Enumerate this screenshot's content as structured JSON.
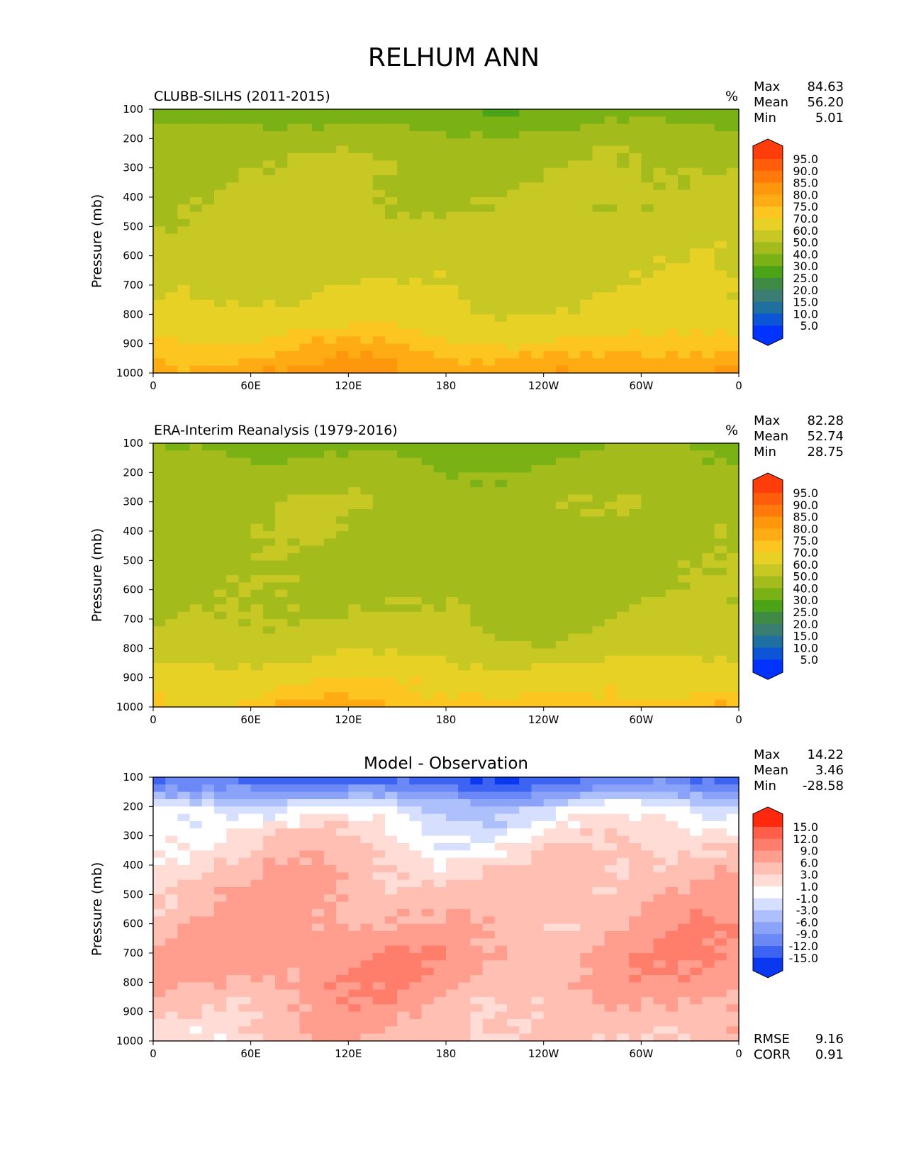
{
  "figure": {
    "title": "RELHUM ANN"
  },
  "colorscales": {
    "relhum": {
      "levels": [
        "95.0",
        "90.0",
        "85.0",
        "80.0",
        "75.0",
        "70.0",
        "60.0",
        "50.0",
        "40.0",
        "30.0",
        "25.0",
        "20.0",
        "15.0",
        "10.0",
        "5.0"
      ],
      "colors": [
        "#ff3d0b",
        "#ff5d0a",
        "#ff7a0a",
        "#ff970c",
        "#ffab14",
        "#fcc51f",
        "#e8d125",
        "#c8c824",
        "#a3bc1c",
        "#7ab115",
        "#4ba418",
        "#3f8a45",
        "#3a7e73",
        "#1f6fa1",
        "#0b55d6",
        "#0033ff"
      ]
    },
    "diff": {
      "levels": [
        "15.0",
        "12.0",
        "9.0",
        "6.0",
        "3.0",
        "1.0",
        "-1.0",
        "-3.0",
        "-6.0",
        "-9.0",
        "-12.0",
        "-15.0"
      ],
      "colors": [
        "#ff2a0d",
        "#ff5f4a",
        "#ff7e6b",
        "#ff9e8e",
        "#ffbfb3",
        "#ffdcd5",
        "#ffffff",
        "#d6dffd",
        "#adc0fb",
        "#8aa3f8",
        "#6a88f6",
        "#3d63f3",
        "#0a38f0"
      ]
    }
  },
  "chart_data": [
    {
      "type": "heatmap",
      "title": "CLUBB-SILHS (2011-2015)",
      "units": "%",
      "stats": {
        "Max": "84.63",
        "Mean": "56.20",
        "Min": "5.01"
      },
      "ylabel": "Pressure (mb)",
      "yticks": [
        "100",
        "200",
        "300",
        "400",
        "500",
        "600",
        "700",
        "800",
        "900",
        "1000"
      ],
      "xticks": [
        "0",
        "60E",
        "120E",
        "180",
        "120W",
        "60W",
        "0"
      ],
      "colorscale": "relhum",
      "profile": [
        {
          "p": 100,
          "v": 31
        },
        {
          "p": 150,
          "v": 38
        },
        {
          "p": 200,
          "v": 45
        },
        {
          "p": 300,
          "v": 49
        },
        {
          "p": 400,
          "v": 51
        },
        {
          "p": 500,
          "v": 53
        },
        {
          "p": 600,
          "v": 56
        },
        {
          "p": 700,
          "v": 58
        },
        {
          "p": 800,
          "v": 63
        },
        {
          "p": 900,
          "v": 73
        },
        {
          "p": 1000,
          "v": 80
        }
      ]
    },
    {
      "type": "heatmap",
      "title": "ERA-Interim Reanalysis (1979-2016)",
      "units": "%",
      "stats": {
        "Max": "82.28",
        "Mean": "52.74",
        "Min": "28.75"
      },
      "ylabel": "Pressure (mb)",
      "yticks": [
        "100",
        "200",
        "300",
        "400",
        "500",
        "600",
        "700",
        "800",
        "900",
        "1000"
      ],
      "xticks": [
        "0",
        "60E",
        "120E",
        "180",
        "120W",
        "60W",
        "0"
      ],
      "colorscale": "relhum",
      "profile": [
        {
          "p": 100,
          "v": 37
        },
        {
          "p": 200,
          "v": 43
        },
        {
          "p": 300,
          "v": 48
        },
        {
          "p": 400,
          "v": 47
        },
        {
          "p": 500,
          "v": 46
        },
        {
          "p": 600,
          "v": 47
        },
        {
          "p": 700,
          "v": 50
        },
        {
          "p": 800,
          "v": 55
        },
        {
          "p": 900,
          "v": 67
        },
        {
          "p": 1000,
          "v": 74
        }
      ]
    },
    {
      "type": "heatmap",
      "title": "Model - Observation",
      "units": "",
      "stats": {
        "Max": "14.22",
        "Mean": "3.46",
        "Min": "-28.58"
      },
      "metrics": {
        "RMSE": "9.16",
        "CORR": "0.91"
      },
      "ylabel": "Pressure (mb)",
      "yticks": [
        "100",
        "200",
        "300",
        "400",
        "500",
        "600",
        "700",
        "800",
        "900",
        "1000"
      ],
      "xticks": [
        "0",
        "60E",
        "120E",
        "180",
        "120W",
        "60W",
        "0"
      ],
      "colorscale": "diff",
      "profile": [
        {
          "p": 100,
          "v": -14
        },
        {
          "p": 150,
          "v": -9
        },
        {
          "p": 200,
          "v": -2
        },
        {
          "p": 300,
          "v": 1.5
        },
        {
          "p": 400,
          "v": 3.5
        },
        {
          "p": 500,
          "v": 5
        },
        {
          "p": 600,
          "v": 6
        },
        {
          "p": 700,
          "v": 7.5
        },
        {
          "p": 800,
          "v": 7
        },
        {
          "p": 900,
          "v": 5
        },
        {
          "p": 1000,
          "v": 4
        }
      ]
    }
  ]
}
